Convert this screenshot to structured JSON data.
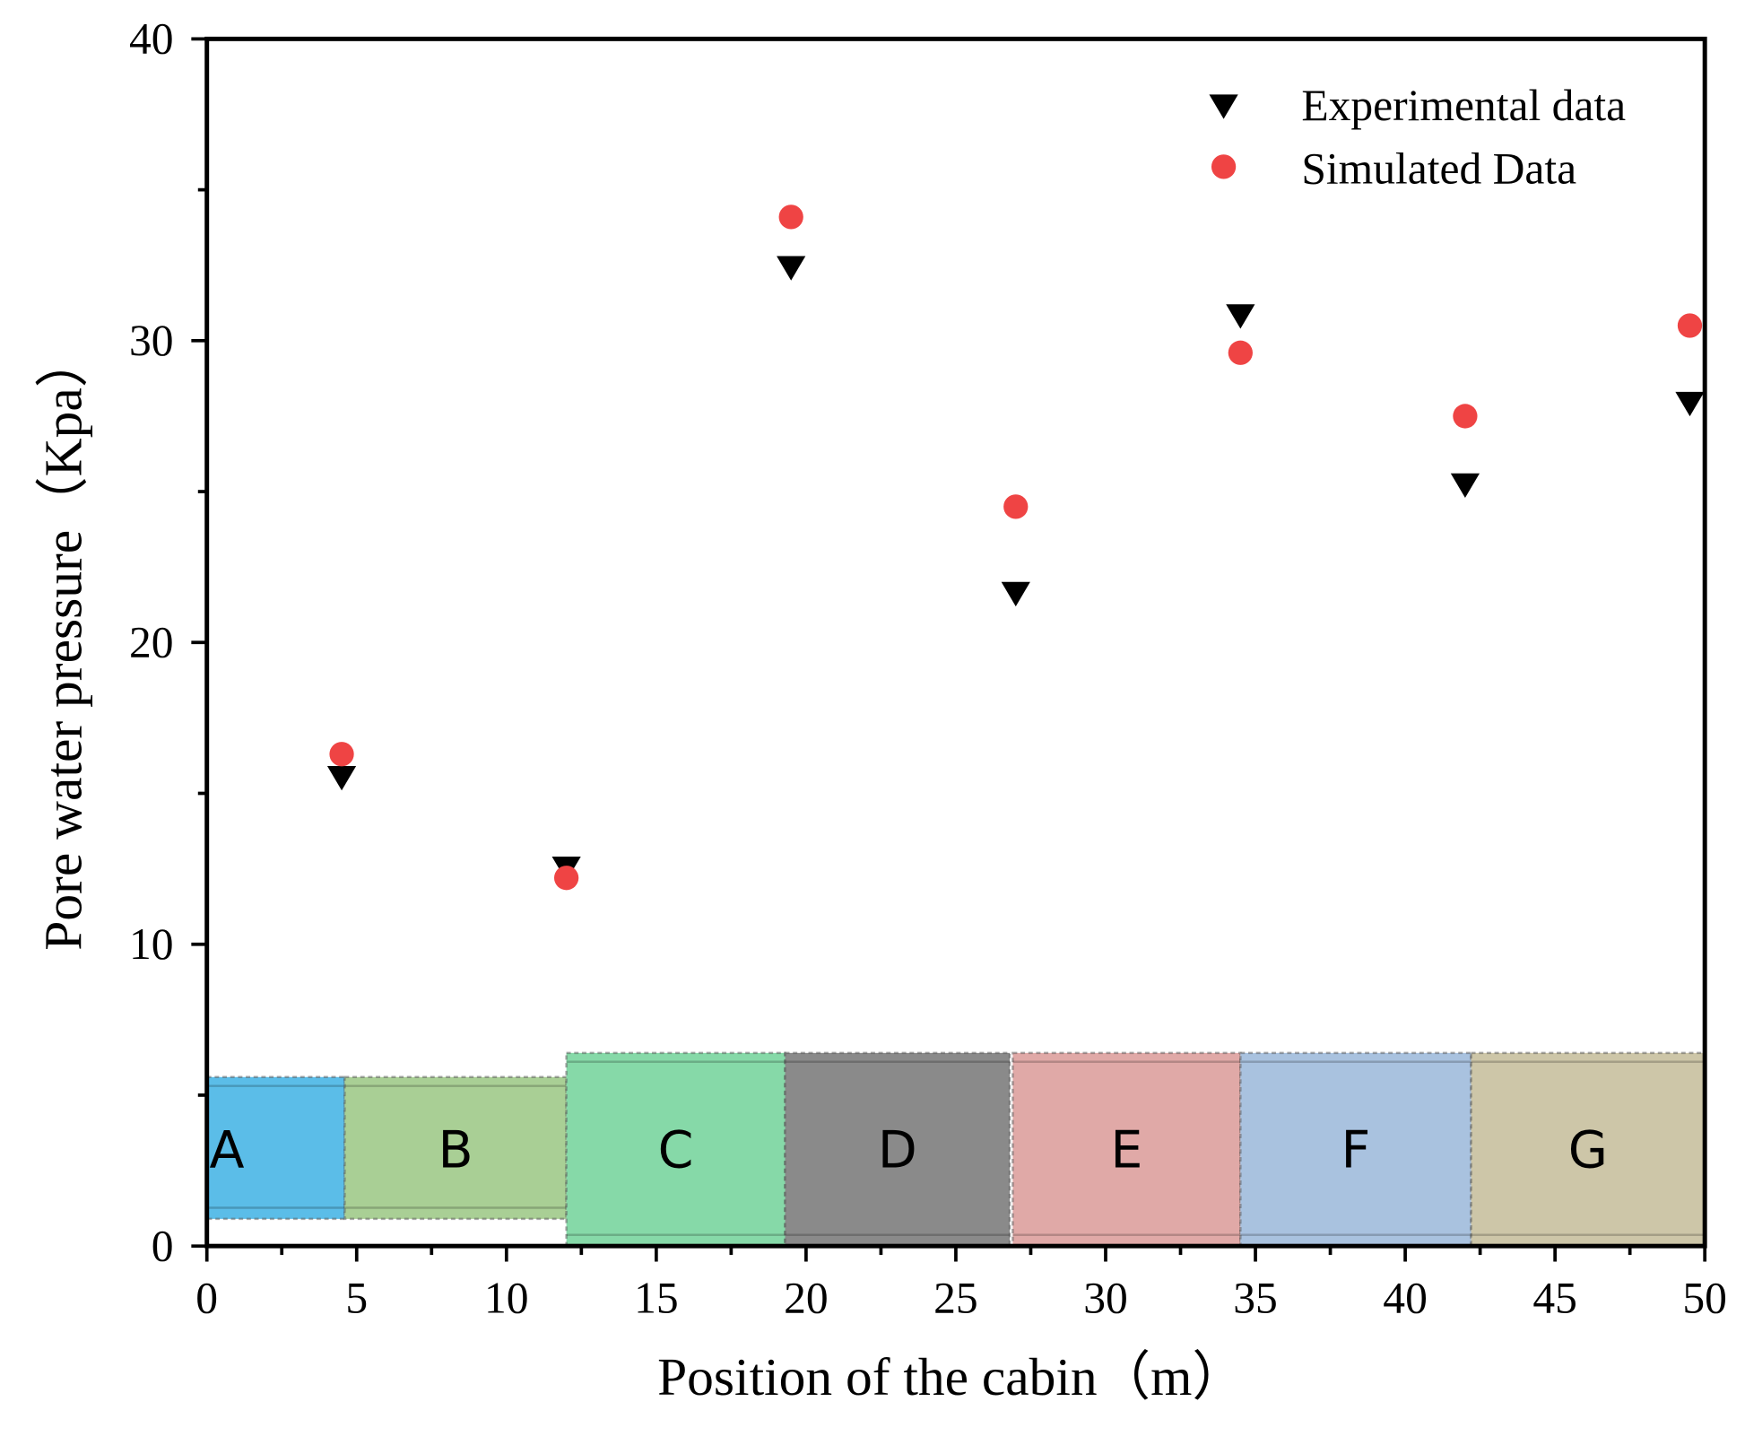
{
  "chart_data": {
    "type": "scatter",
    "title": "",
    "xlabel": "Position of the cabin（m）",
    "ylabel": "Pore water pressure（Kpa）",
    "xlim": [
      0,
      50
    ],
    "ylim": [
      0,
      40
    ],
    "xticks": [
      "0",
      "5",
      "10",
      "15",
      "20",
      "25",
      "30",
      "35",
      "40",
      "45",
      "50"
    ],
    "yticks": [
      "0",
      "10",
      "20",
      "30",
      "40"
    ],
    "grid": false,
    "legend_position": "top-right",
    "series": [
      {
        "name": "Experimental data",
        "marker": "triangle-down",
        "color": "#000000",
        "x": [
          4.5,
          12,
          19.5,
          27,
          34.5,
          42,
          49.5
        ],
        "y": [
          15.5,
          12.5,
          32.4,
          21.6,
          30.8,
          25.2,
          27.9
        ]
      },
      {
        "name": "Simulated Data",
        "marker": "circle",
        "color": "#ef4444",
        "x": [
          4.5,
          12,
          19.5,
          27,
          34.5,
          42,
          49.5
        ],
        "y": [
          16.3,
          12.2,
          34.1,
          24.5,
          29.6,
          27.5,
          30.5
        ]
      }
    ],
    "cabin_sections": [
      {
        "label": "A",
        "x0": 0,
        "x1": 4.6,
        "color": "#5bbde8"
      },
      {
        "label": "B",
        "x0": 4.6,
        "x1": 12,
        "color": "#a9cf95"
      },
      {
        "label": "C",
        "x0": 12,
        "x1": 19.3,
        "color": "#86d9a8"
      },
      {
        "label": "D",
        "x0": 19.3,
        "x1": 26.8,
        "color": "#8a8a8a"
      },
      {
        "label": "E",
        "x0": 26.9,
        "x1": 34.5,
        "color": "#e0a9a7"
      },
      {
        "label": "F",
        "x0": 34.5,
        "x1": 42.2,
        "color": "#a9c2df"
      },
      {
        "label": "G",
        "x0": 42.2,
        "x1": 50,
        "color": "#cdc6a8"
      }
    ]
  }
}
